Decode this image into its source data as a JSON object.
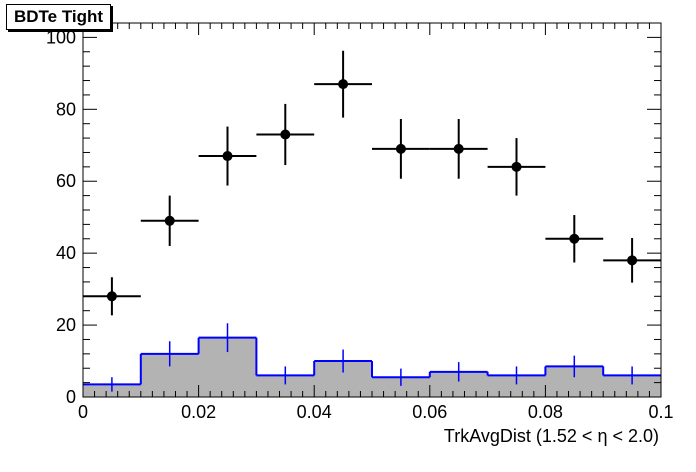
{
  "chart_data": {
    "type": "histogram",
    "title": "BDTe Tight",
    "xlabel": "TrkAvgDist (1.52 <  η < 2.0)",
    "xlim": [
      0,
      0.1
    ],
    "ylim": [
      0,
      104
    ],
    "x_tick_labels": [
      "0",
      "0.02",
      "0.04",
      "0.06",
      "0.08",
      "0.1"
    ],
    "x_tick_values": [
      0,
      0.02,
      0.04,
      0.06,
      0.08,
      0.1
    ],
    "y_tick_labels": [
      "0",
      "20",
      "40",
      "60",
      "80",
      "100"
    ],
    "y_tick_values": [
      0,
      20,
      40,
      60,
      80,
      100
    ],
    "bin_edges": [
      0,
      0.01,
      0.02,
      0.03,
      0.04,
      0.05,
      0.06,
      0.07,
      0.08,
      0.09,
      0.1
    ],
    "series": [
      {
        "kind": "points_with_errors",
        "color": "#000000",
        "values": [
          28,
          49,
          67,
          73,
          87,
          69,
          69,
          64,
          44,
          38
        ],
        "errors": [
          5.3,
          7.0,
          8.2,
          8.5,
          9.3,
          8.3,
          8.3,
          8.0,
          6.6,
          6.2
        ]
      },
      {
        "kind": "filled_histogram",
        "line_color": "#0000ff",
        "fill_color": "#b3b3b3",
        "values": [
          3.5,
          12,
          16.5,
          6,
          10,
          5.5,
          7,
          6,
          8.5,
          6
        ],
        "errors": [
          2,
          3.5,
          4,
          2.5,
          3.2,
          2.4,
          2.7,
          2.5,
          3,
          2.5
        ]
      }
    ]
  }
}
